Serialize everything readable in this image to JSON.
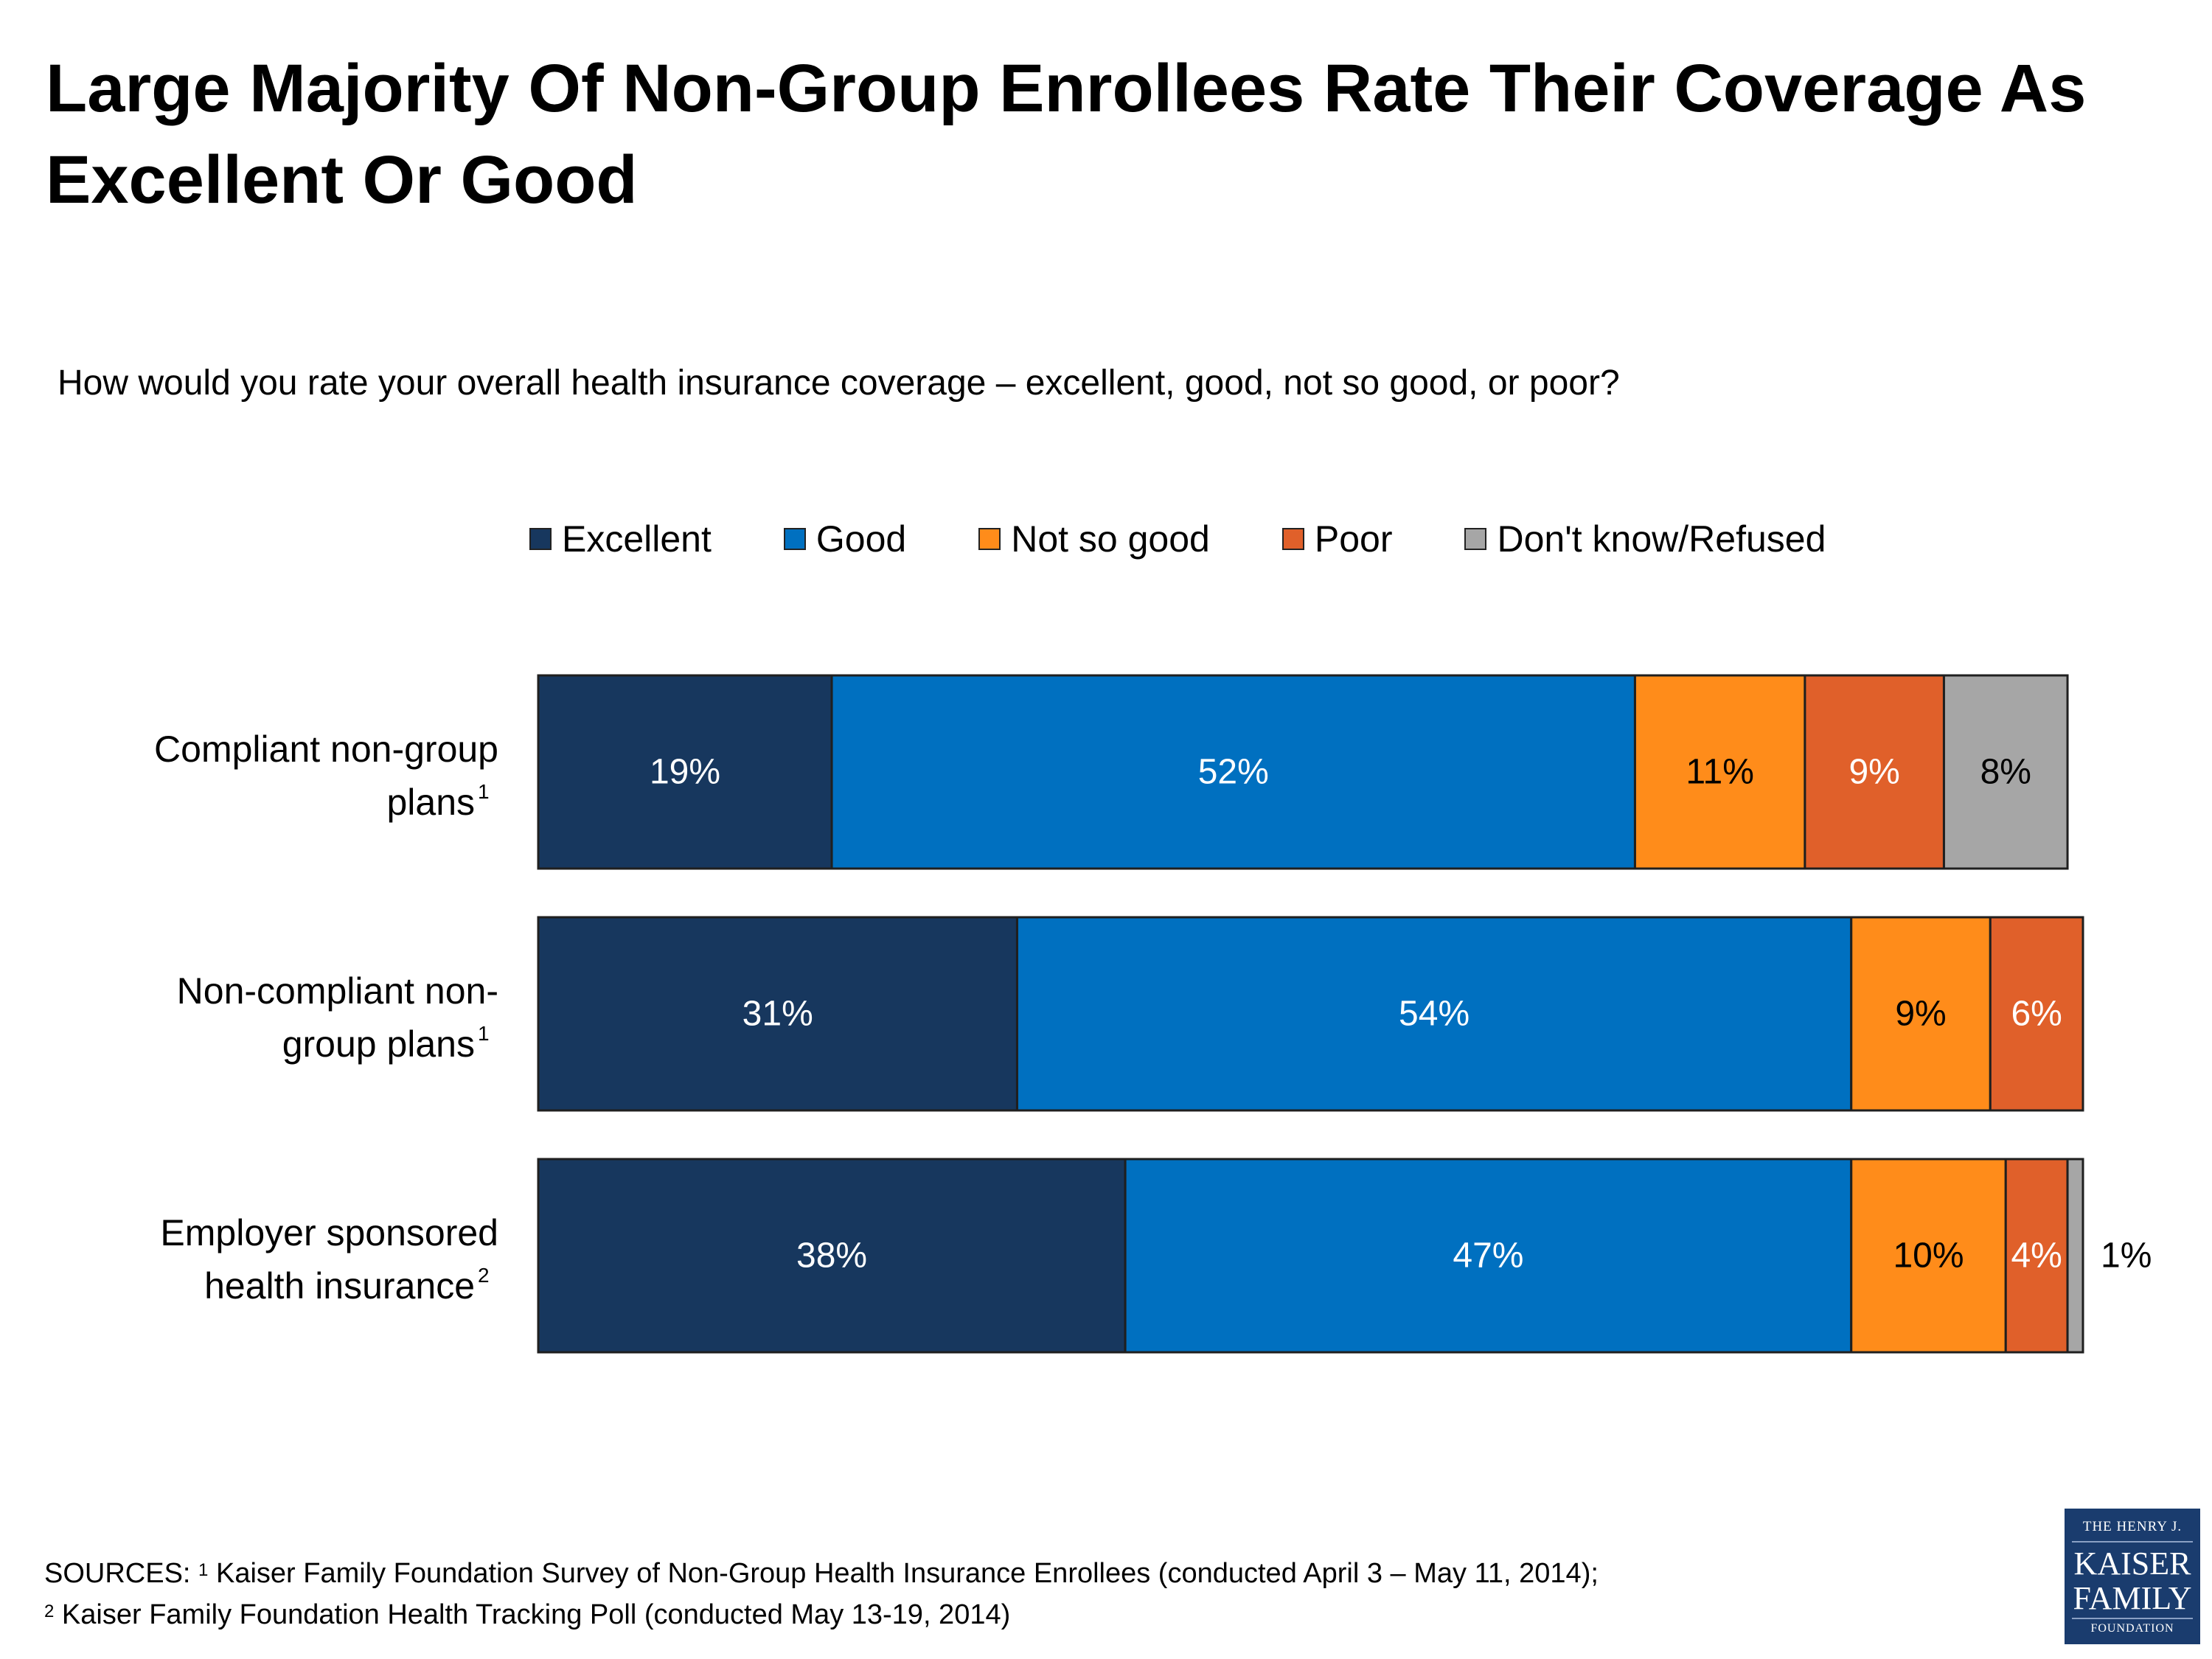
{
  "title": "Large Majority Of Non-Group Enrollees Rate Their Coverage As Excellent Or Good",
  "subtitle": "How would you rate your overall health insurance coverage – excellent, good, not so good, or poor?",
  "colors": {
    "Excellent": "#17375e",
    "Good": "#0070c0",
    "Not so good": "#ff8c1a",
    "Poor": "#e0602a",
    "Don't know/Refused": "#a6a6a6",
    "border": "#1f1f1f"
  },
  "chart_data": {
    "type": "bar",
    "orientation": "horizontal",
    "stacked": true,
    "categories": [
      {
        "label": "Compliant non-group plans",
        "sup": "1"
      },
      {
        "label": "Non-compliant non-group plans",
        "sup": "1"
      },
      {
        "label": "Employer sponsored health insurance",
        "sup": "2"
      }
    ],
    "series": [
      {
        "name": "Excellent",
        "values": [
          19,
          31,
          38
        ]
      },
      {
        "name": "Good",
        "values": [
          52,
          54,
          47
        ]
      },
      {
        "name": "Not so good",
        "values": [
          11,
          9,
          10
        ]
      },
      {
        "name": "Poor",
        "values": [
          9,
          6,
          4
        ]
      },
      {
        "name": "Don't know/Refused",
        "values": [
          8,
          0,
          1
        ]
      }
    ],
    "value_suffix": "%",
    "legend_position": "top",
    "grid": false
  },
  "footer": {
    "sources_label": "SOURCES:",
    "source1_sup": "1",
    "source1": "Kaiser Family Foundation Survey of Non-Group Health Insurance Enrollees (conducted April 3 – May 11, 2014);",
    "source2_sup": "2",
    "source2": "Kaiser Family Foundation Health Tracking Poll (conducted May 13-19, 2014)"
  },
  "logo": {
    "line1": "THE HENRY J.",
    "line2": "KAISER",
    "line3": "FAMILY",
    "line4": "FOUNDATION"
  }
}
